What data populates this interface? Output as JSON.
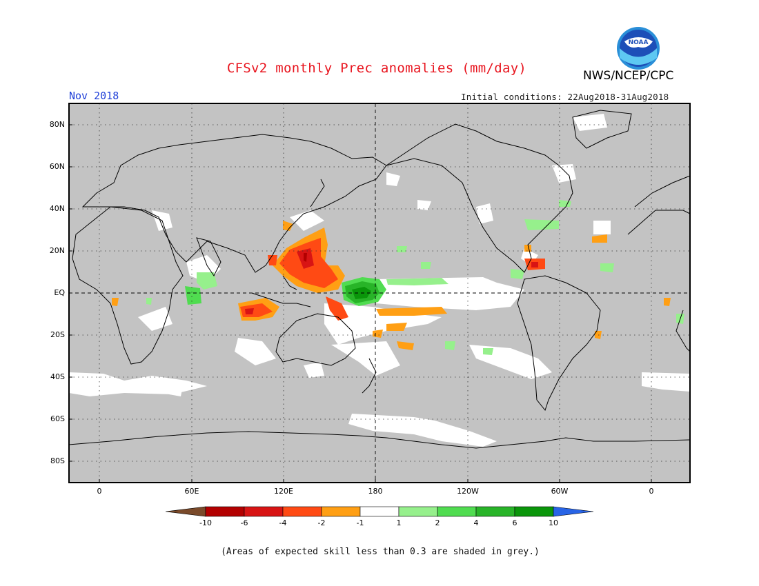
{
  "header": {
    "title": "CFSv2 monthly Prec anomalies (mm/day)",
    "agency": "NWS/NCEP/CPC",
    "logo_text": "NOAA",
    "month": "Nov 2018",
    "initial_conditions": "Initial conditions: 22Aug2018-31Aug2018"
  },
  "map": {
    "lat_labels": [
      "80N",
      "60N",
      "40N",
      "20N",
      "EQ",
      "20S",
      "40S",
      "60S",
      "80S"
    ],
    "lon_labels": [
      "0",
      "60E",
      "120E",
      "180",
      "120W",
      "60W",
      "0"
    ],
    "projection_center": "180",
    "grey_color": "#c3c3c3"
  },
  "legend": {
    "labels": [
      "-10",
      "-6",
      "-4",
      "-2",
      "-1",
      "1",
      "2",
      "4",
      "6",
      "10"
    ],
    "colors": [
      "#7a4a2a",
      "#b30000",
      "#d81414",
      "#ff4a14",
      "#ff9f14",
      "#ffffff",
      "#96f08c",
      "#50dc50",
      "#28b428",
      "#0a960a",
      "#2864e6"
    ]
  },
  "footnote": "(Areas of expected skill less than 0.3 are shaded in grey.)"
}
